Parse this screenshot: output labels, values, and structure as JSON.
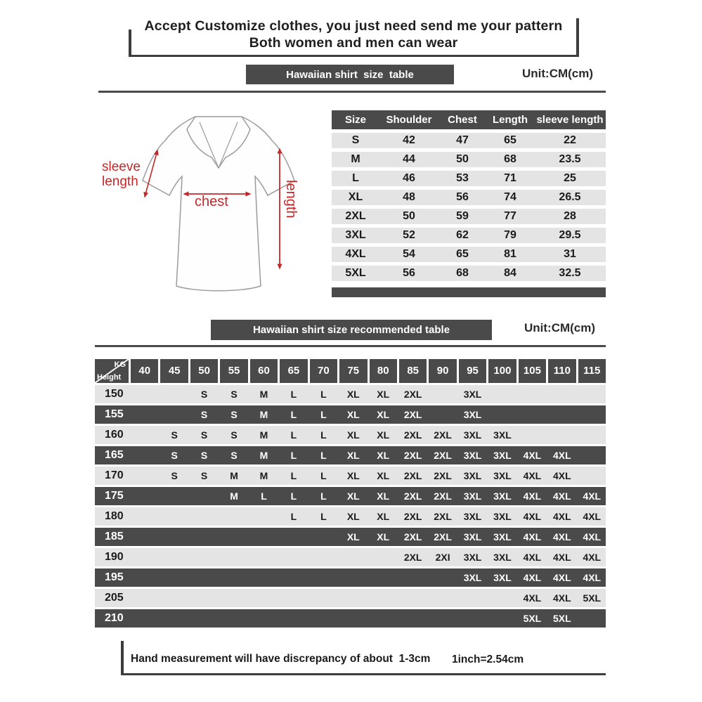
{
  "header": {
    "title_line1": "Accept Customize clothes, you just need send me your pattern",
    "title_line2": "Both women and men can wear"
  },
  "size_table_section": {
    "banner": "Hawaiian shirt  size  table",
    "unit": "Unit:CM(cm)"
  },
  "shirt_diagram": {
    "sleeve_label_line1": "sleeve",
    "sleeve_label_line2": "length",
    "chest_label": "chest",
    "length_label": "length"
  },
  "size_table": {
    "headers": [
      "Size",
      "Shoulder",
      "Chest",
      "Length",
      "sleeve length"
    ],
    "rows": [
      [
        "S",
        "42",
        "47",
        "65",
        "22"
      ],
      [
        "M",
        "44",
        "50",
        "68",
        "23.5"
      ],
      [
        "L",
        "46",
        "53",
        "71",
        "25"
      ],
      [
        "XL",
        "48",
        "56",
        "74",
        "26.5"
      ],
      [
        "2XL",
        "50",
        "59",
        "77",
        "28"
      ],
      [
        "3XL",
        "52",
        "62",
        "79",
        "29.5"
      ],
      [
        "4XL",
        "54",
        "65",
        "81",
        "31"
      ],
      [
        "5XL",
        "56",
        "68",
        "84",
        "32.5"
      ]
    ]
  },
  "recommended_section": {
    "banner": "Hawaiian shirt size recommended table",
    "unit": "Unit:CM(cm)"
  },
  "recommended_table": {
    "corner_top_right": "KG",
    "corner_bottom_left": "Height",
    "weight_columns": [
      "40",
      "45",
      "50",
      "55",
      "60",
      "65",
      "70",
      "75",
      "80",
      "85",
      "90",
      "95",
      "100",
      "105",
      "110",
      "115"
    ],
    "rows": [
      {
        "height": "150",
        "cells": [
          "",
          "",
          "S",
          "S",
          "M",
          "L",
          "L",
          "XL",
          "XL",
          "2XL",
          "",
          "3XL",
          "",
          "",
          "",
          ""
        ]
      },
      {
        "height": "155",
        "cells": [
          "",
          "",
          "S",
          "S",
          "M",
          "L",
          "L",
          "XL",
          "XL",
          "2XL",
          "",
          "3XL",
          "",
          "",
          "",
          ""
        ]
      },
      {
        "height": "160",
        "cells": [
          "",
          "S",
          "S",
          "S",
          "M",
          "L",
          "L",
          "XL",
          "XL",
          "2XL",
          "2XL",
          "3XL",
          "3XL",
          "",
          "",
          ""
        ]
      },
      {
        "height": "165",
        "cells": [
          "",
          "S",
          "S",
          "S",
          "M",
          "L",
          "L",
          "XL",
          "XL",
          "2XL",
          "2XL",
          "3XL",
          "3XL",
          "4XL",
          "4XL",
          ""
        ]
      },
      {
        "height": "170",
        "cells": [
          "",
          "S",
          "S",
          "M",
          "M",
          "L",
          "L",
          "XL",
          "XL",
          "2XL",
          "2XL",
          "3XL",
          "3XL",
          "4XL",
          "4XL",
          ""
        ]
      },
      {
        "height": "175",
        "cells": [
          "",
          "",
          "",
          "M",
          "L",
          "L",
          "L",
          "XL",
          "XL",
          "2XL",
          "2XL",
          "3XL",
          "3XL",
          "4XL",
          "4XL",
          "4XL"
        ]
      },
      {
        "height": "180",
        "cells": [
          "",
          "",
          "",
          "",
          "",
          "L",
          "L",
          "XL",
          "XL",
          "2XL",
          "2XL",
          "3XL",
          "3XL",
          "4XL",
          "4XL",
          "4XL"
        ]
      },
      {
        "height": "185",
        "cells": [
          "",
          "",
          "",
          "",
          "",
          "",
          "",
          "XL",
          "XL",
          "2XL",
          "2XL",
          "3XL",
          "3XL",
          "4XL",
          "4XL",
          "4XL"
        ]
      },
      {
        "height": "190",
        "cells": [
          "",
          "",
          "",
          "",
          "",
          "",
          "",
          "",
          "",
          "2XL",
          "2XI",
          "3XL",
          "3XL",
          "4XL",
          "4XL",
          "4XL"
        ]
      },
      {
        "height": "195",
        "cells": [
          "",
          "",
          "",
          "",
          "",
          "",
          "",
          "",
          "",
          "",
          "",
          "3XL",
          "3XL",
          "4XL",
          "4XL",
          "4XL"
        ]
      },
      {
        "height": "205",
        "cells": [
          "",
          "",
          "",
          "",
          "",
          "",
          "",
          "",
          "",
          "",
          "",
          "",
          "",
          "4XL",
          "4XL",
          "5XL"
        ]
      },
      {
        "height": "210",
        "cells": [
          "",
          "",
          "",
          "",
          "",
          "",
          "",
          "",
          "",
          "",
          "",
          "",
          "",
          "5XL",
          "5XL",
          ""
        ]
      }
    ]
  },
  "footer": {
    "note": "Hand measurement will have discrepancy of about  1-3cm",
    "conversion": "1inch=2.54cm"
  },
  "colors": {
    "dark": "#4a4a4a",
    "light_row": "#e4e4e4",
    "accent_red": "#c62828"
  }
}
